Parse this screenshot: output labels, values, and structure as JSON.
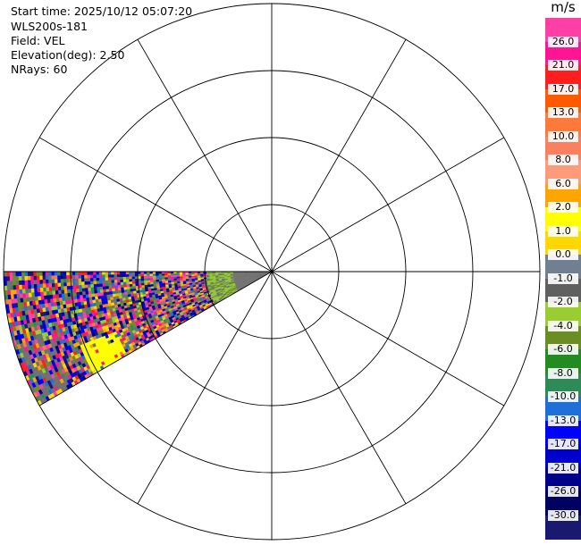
{
  "info_lines": [
    "Start time: 2025/10/12 05:07:20",
    "WLS200s-181",
    "Field: VEL",
    "Elevation(deg): 2.50",
    "NRays: 60"
  ],
  "colorbar": {
    "unit": "m/s",
    "ticks": [
      "26.0",
      "21.0",
      "17.0",
      "13.0",
      "10.0",
      "8.0",
      "6.0",
      "2.0",
      "1.0",
      "0.0",
      "-1.0",
      "-2.0",
      "-4.0",
      "-6.0",
      "-8.0",
      "-10.0",
      "-13.0",
      "-17.0",
      "-21.0",
      "-26.0",
      "-30.0"
    ],
    "colors": [
      "#ff3fa6",
      "#ff1493",
      "#ff1e1e",
      "#ff5a00",
      "#ff7a3a",
      "#fa8060",
      "#ff9a7a",
      "#ffa500",
      "#ffff00",
      "#ffd700",
      "#708090",
      "#606060",
      "#9acd32",
      "#6b8e23",
      "#228b22",
      "#2e8b57",
      "#1e6fd8",
      "#0000ff",
      "#0000cd",
      "#00008b",
      "#000060",
      "#191970"
    ]
  },
  "ppi": {
    "rings": 4,
    "spokes_deg": 30,
    "sector_from_deg": 240,
    "sector_to_deg": 270,
    "colors": {
      "ring": "#000000",
      "background": "#ffffff",
      "near_field": "#707070",
      "near_speckle": "#8fc63a",
      "yellow_patch": "#ffff00"
    }
  }
}
